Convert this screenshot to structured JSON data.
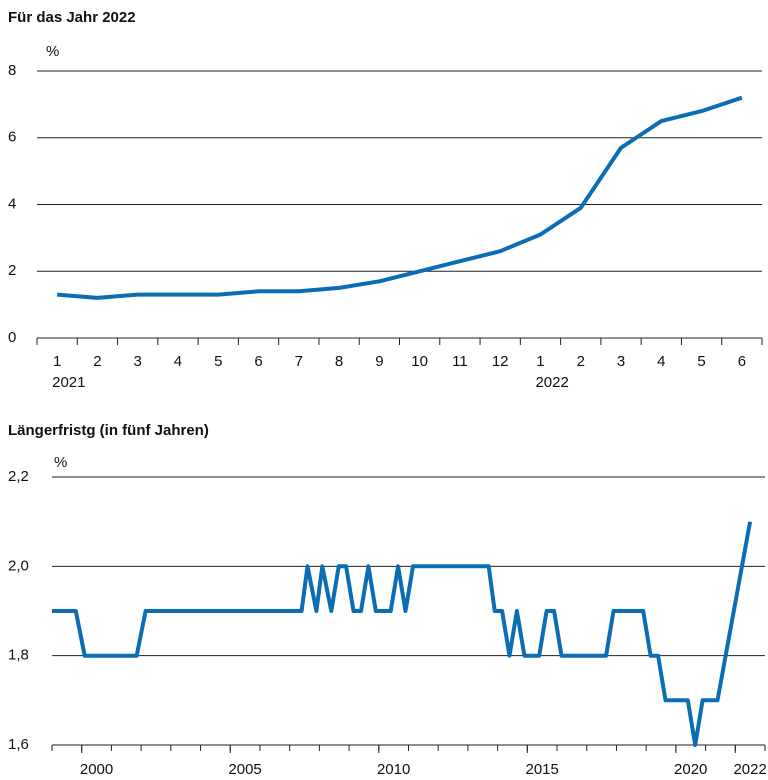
{
  "chart_data": [
    {
      "type": "line",
      "title": "Für das Jahr 2022",
      "y_unit": "%",
      "categories": [
        "1",
        "2",
        "3",
        "4",
        "5",
        "6",
        "7",
        "8",
        "9",
        "10",
        "11",
        "12",
        "1",
        "2",
        "3",
        "4",
        "5",
        "6"
      ],
      "year_labels": [
        "2021",
        null,
        null,
        null,
        null,
        null,
        null,
        null,
        null,
        null,
        null,
        null,
        "2022",
        null,
        null,
        null,
        null,
        null
      ],
      "values": [
        1.3,
        1.2,
        1.3,
        1.3,
        1.3,
        1.4,
        1.4,
        1.5,
        1.7,
        2.0,
        2.3,
        2.6,
        3.1,
        3.9,
        5.7,
        6.5,
        6.8,
        7.2
      ],
      "color": "#0b6db3",
      "ylim": [
        0,
        8
      ],
      "yticks": [
        0,
        2,
        4,
        6,
        8
      ],
      "grid": true
    },
    {
      "type": "line",
      "title": "Längerfristg (in fünf Jahren)",
      "y_unit": "%",
      "x": [
        1999.0,
        1999.8,
        2000.1,
        2001.85,
        2002.15,
        2007.4,
        2007.6,
        2007.9,
        2008.1,
        2008.4,
        2008.65,
        2008.9,
        2009.15,
        2009.4,
        2009.65,
        2009.9,
        2010.4,
        2010.65,
        2010.9,
        2011.15,
        2013.7,
        2013.9,
        2014.15,
        2014.4,
        2014.65,
        2014.9,
        2015.4,
        2015.65,
        2015.9,
        2016.15,
        2017.65,
        2017.9,
        2018.9,
        2019.15,
        2019.4,
        2019.65,
        2020.4,
        2020.65,
        2020.9,
        2021.4,
        2022.5
      ],
      "y": [
        1.9,
        1.9,
        1.8,
        1.8,
        1.9,
        1.9,
        2.0,
        1.9,
        2.0,
        1.9,
        2.0,
        2.0,
        1.9,
        1.9,
        2.0,
        1.9,
        1.9,
        2.0,
        1.9,
        2.0,
        2.0,
        1.9,
        1.9,
        1.8,
        1.9,
        1.8,
        1.8,
        1.9,
        1.9,
        1.8,
        1.8,
        1.9,
        1.9,
        1.8,
        1.8,
        1.7,
        1.7,
        1.6,
        1.7,
        1.7,
        2.1
      ],
      "color": "#0b6db3",
      "xlim": [
        1999,
        2023
      ],
      "xticks": [
        {
          "value": 2000,
          "label": "2000"
        },
        {
          "value": 2005,
          "label": "2005"
        },
        {
          "value": 2010,
          "label": "2010"
        },
        {
          "value": 2015,
          "label": "2015"
        },
        {
          "value": 2020,
          "label": "2020"
        },
        {
          "value": 2022,
          "label": "2022"
        }
      ],
      "xminorticks": [
        1999,
        2000,
        2001,
        2002,
        2003,
        2004,
        2005,
        2006,
        2007,
        2008,
        2009,
        2010,
        2011,
        2012,
        2013,
        2014,
        2015,
        2016,
        2017,
        2018,
        2019,
        2020,
        2021,
        2022,
        2023
      ],
      "ylim": [
        1.6,
        2.2
      ],
      "yticks": [
        {
          "value": 1.6,
          "label": "1,6"
        },
        {
          "value": 1.8,
          "label": "1,8"
        },
        {
          "value": 2.0,
          "label": "2,0"
        },
        {
          "value": 2.2,
          "label": "2,2"
        }
      ],
      "grid": true
    }
  ]
}
